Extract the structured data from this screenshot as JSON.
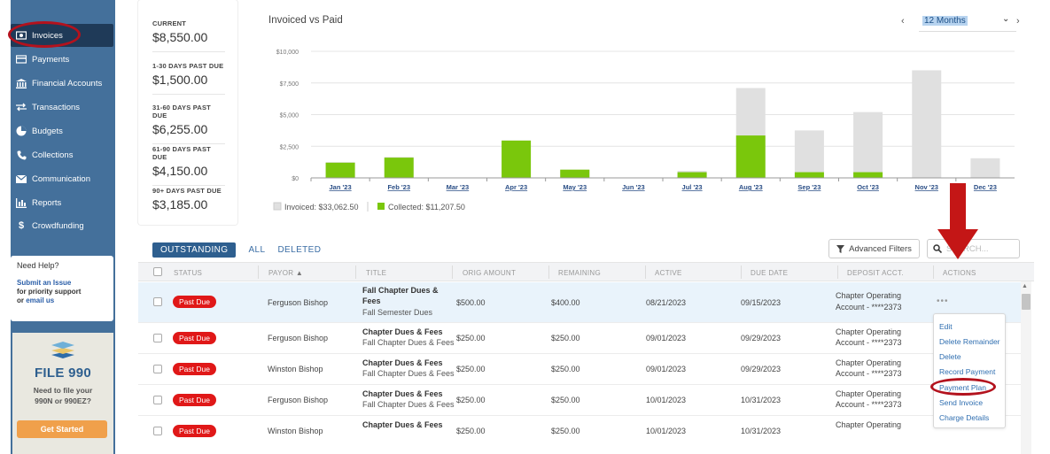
{
  "sidebar": {
    "items": [
      {
        "label": "Invoices",
        "icon": "money-icon",
        "active": true
      },
      {
        "label": "Payments",
        "icon": "card-icon"
      },
      {
        "label": "Financial Accounts",
        "icon": "bank-icon"
      },
      {
        "label": "Transactions",
        "icon": "transfer-icon"
      },
      {
        "label": "Budgets",
        "icon": "pie-icon"
      },
      {
        "label": "Collections",
        "icon": "phone-icon"
      },
      {
        "label": "Communication",
        "icon": "envelope-icon"
      },
      {
        "label": "Reports",
        "icon": "bar-chart-icon"
      },
      {
        "label": "Crowdfunding",
        "icon": "dollar-icon"
      }
    ],
    "help": {
      "title": "Need Help?",
      "submit_link": "Submit an Issue",
      "priority_text": "for priority support",
      "or_text": "or",
      "email_link": "email us"
    },
    "file990": {
      "title": "FILE 990",
      "line1": "Need to file your",
      "line2": "990N or 990EZ?",
      "button": "Get Started"
    }
  },
  "summary": [
    {
      "label": "CURRENT",
      "value": "$8,550.00"
    },
    {
      "label": "1-30 DAYS PAST DUE",
      "value": "$1,500.00"
    },
    {
      "label": "31-60 DAYS PAST DUE",
      "value": "$6,255.00"
    },
    {
      "label": "61-90 DAYS PAST DUE",
      "value": "$4,150.00"
    },
    {
      "label": "90+ DAYS PAST DUE",
      "value": "$3,185.00"
    }
  ],
  "chart": {
    "title": "Invoiced vs Paid",
    "period": "12 Months",
    "legend": {
      "invoiced": "Invoiced: $33,062.50",
      "collected": "Collected: $11,207.50"
    },
    "colors": {
      "invoiced": "#e0e0e0",
      "collected": "#7ac70c",
      "collected_top": "#9ad92c"
    }
  },
  "chart_data": {
    "type": "bar",
    "title": "Invoiced vs Paid",
    "categories": [
      "Jan '23",
      "Feb '23",
      "Mar '23",
      "Apr '23",
      "May '23",
      "Jun '23",
      "Jul '23",
      "Aug '23",
      "Sep '23",
      "Oct '23",
      "Nov '23",
      "Dec '23"
    ],
    "y_tick_labels": [
      "$10,000",
      "$7,500",
      "$5,000",
      "$2,500",
      "$0"
    ],
    "ylim": [
      0,
      10000
    ],
    "grid": true,
    "legend_position": "bottom-left",
    "series": [
      {
        "name": "Invoiced",
        "values": [
          1250,
          1650,
          0,
          2950,
          650,
          0,
          550,
          7100,
          3750,
          5200,
          8500,
          1550
        ]
      },
      {
        "name": "Collected",
        "values": [
          1200,
          1600,
          0,
          2950,
          650,
          0,
          450,
          3350,
          450,
          450,
          0,
          0
        ]
      }
    ]
  },
  "table": {
    "tabs": [
      "OUTSTANDING",
      "ALL",
      "DELETED"
    ],
    "advanced_filters": "Advanced Filters",
    "search_placeholder": "SEARCH...",
    "columns": [
      "STATUS",
      "PAYOR",
      "TITLE",
      "ORIG AMOUNT",
      "REMAINING",
      "ACTIVE",
      "DUE DATE",
      "DEPOSIT ACCT.",
      "ACTIONS"
    ],
    "payor_sort_indicator": "▲",
    "rows": [
      {
        "status": "Past Due",
        "payor": "Ferguson Bishop",
        "title": "Fall Chapter Dues & Fees",
        "subtitle": "Fall Semester Dues",
        "orig": "$500.00",
        "remaining": "$400.00",
        "active": "08/21/2023",
        "due": "09/15/2023",
        "acct1": "Chapter Operating",
        "acct2": "Account - ****2373"
      },
      {
        "status": "Past Due",
        "payor": "Ferguson Bishop",
        "title": "Chapter Dues & Fees",
        "subtitle": "Fall Chapter Dues & Fees",
        "orig": "$250.00",
        "remaining": "$250.00",
        "active": "09/01/2023",
        "due": "09/29/2023",
        "acct1": "Chapter Operating",
        "acct2": "Account - ****2373"
      },
      {
        "status": "Past Due",
        "payor": "Winston Bishop",
        "title": "Chapter Dues & Fees",
        "subtitle": "Fall Chapter Dues & Fees",
        "orig": "$250.00",
        "remaining": "$250.00",
        "active": "09/01/2023",
        "due": "09/29/2023",
        "acct1": "Chapter Operating",
        "acct2": "Account - ****2373"
      },
      {
        "status": "Past Due",
        "payor": "Ferguson Bishop",
        "title": "Chapter Dues & Fees",
        "subtitle": "Fall Chapter Dues & Fees",
        "orig": "$250.00",
        "remaining": "$250.00",
        "active": "10/01/2023",
        "due": "10/31/2023",
        "acct1": "Chapter Operating",
        "acct2": "Account - ****2373"
      },
      {
        "status": "Past Due",
        "payor": "Winston Bishop",
        "title": "Chapter Dues & Fees",
        "subtitle": "",
        "orig": "$250.00",
        "remaining": "$250.00",
        "active": "10/01/2023",
        "due": "10/31/2023",
        "acct1": "Chapter Operating",
        "acct2": ""
      }
    ],
    "action_menu": [
      "Edit",
      "Delete Remainder",
      "Delete",
      "Record Payment",
      "Payment Plan",
      "Send Invoice",
      "Charge Details"
    ]
  }
}
